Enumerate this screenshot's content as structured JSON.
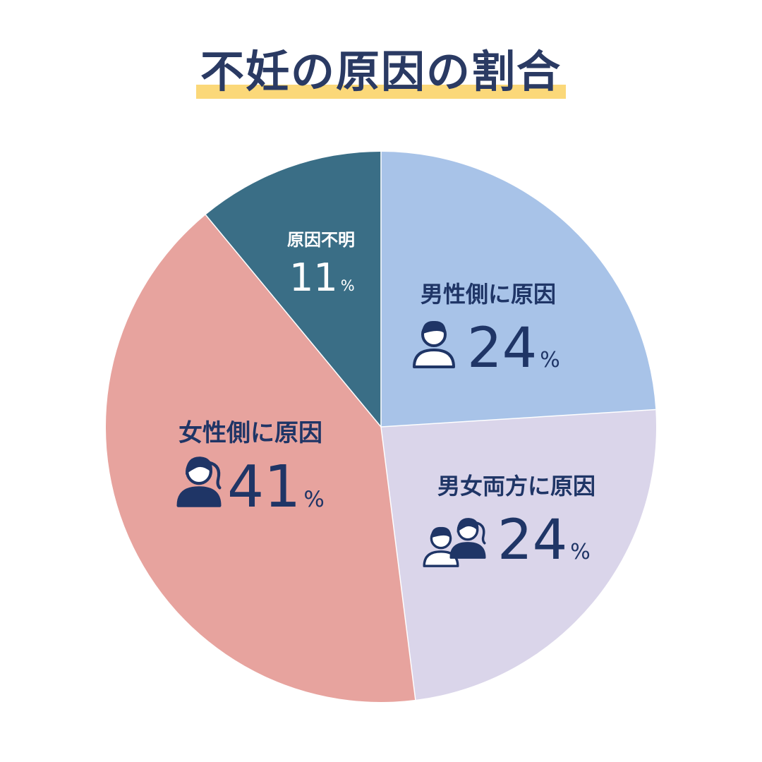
{
  "title": "不妊の原因の割合",
  "colors": {
    "title": "#2a3a63",
    "title_underline": "#fbd879",
    "label_dark": "#1f3566",
    "label_light": "#ffffff"
  },
  "chart_data": {
    "type": "pie",
    "title": "不妊の原因の割合",
    "unit": "%",
    "start_angle_deg": 0,
    "direction": "clockwise",
    "slices": [
      {
        "label": "男性側に原因",
        "value": 24,
        "color": "#a8c3e8",
        "icon": "man-icon",
        "label_color": "#1f3566"
      },
      {
        "label": "男女両方に原因",
        "value": 24,
        "color": "#dad5ea",
        "icon": "couple-icon",
        "label_color": "#1f3566"
      },
      {
        "label": "女性側に原因",
        "value": 41,
        "color": "#e7a39e",
        "icon": "woman-icon",
        "label_color": "#1f3566"
      },
      {
        "label": "原因不明",
        "value": 11,
        "color": "#3a6e86",
        "icon": "",
        "label_color": "#ffffff"
      }
    ]
  }
}
